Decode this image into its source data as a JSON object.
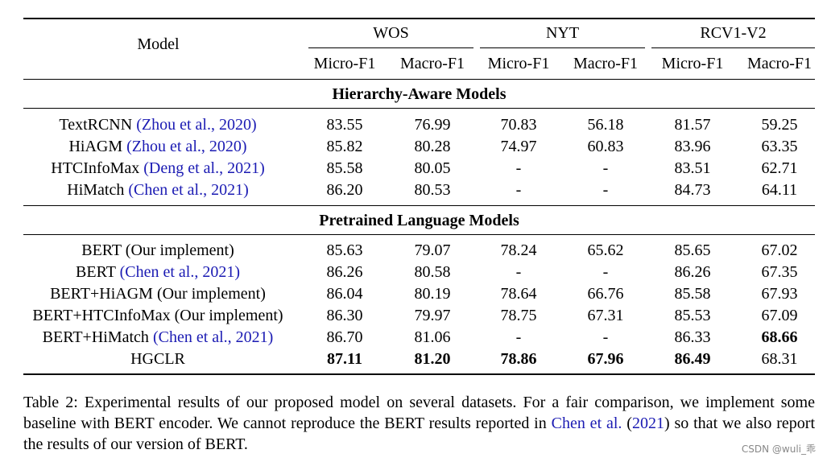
{
  "table": {
    "model_header": "Model",
    "datasets": [
      "WOS",
      "NYT",
      "RCV1-V2"
    ],
    "metrics": [
      "Micro-F1",
      "Macro-F1",
      "Micro-F1",
      "Macro-F1",
      "Micro-F1",
      "Macro-F1"
    ],
    "sections": [
      {
        "title": "Hierarchy-Aware Models",
        "rows": [
          {
            "model": "TextRCNN",
            "cite": "(Zhou et al., 2020)",
            "values": [
              "83.55",
              "76.99",
              "70.83",
              "56.18",
              "81.57",
              "59.25"
            ],
            "bold": []
          },
          {
            "model": "HiAGM",
            "cite": "(Zhou et al., 2020)",
            "values": [
              "85.82",
              "80.28",
              "74.97",
              "60.83",
              "83.96",
              "63.35"
            ],
            "bold": []
          },
          {
            "model": "HTCInfoMax",
            "cite": "(Deng et al., 2021)",
            "values": [
              "85.58",
              "80.05",
              "-",
              "-",
              "83.51",
              "62.71"
            ],
            "bold": []
          },
          {
            "model": "HiMatch",
            "cite": "(Chen et al., 2021)",
            "values": [
              "86.20",
              "80.53",
              "-",
              "-",
              "84.73",
              "64.11"
            ],
            "bold": []
          }
        ]
      },
      {
        "title": "Pretrained Language Models",
        "rows": [
          {
            "model": "BERT (Our implement)",
            "cite": "",
            "values": [
              "85.63",
              "79.07",
              "78.24",
              "65.62",
              "85.65",
              "67.02"
            ],
            "bold": []
          },
          {
            "model": "BERT",
            "cite": "(Chen et al., 2021)",
            "values": [
              "86.26",
              "80.58",
              "-",
              "-",
              "86.26",
              "67.35"
            ],
            "bold": []
          },
          {
            "model": "BERT+HiAGM (Our implement)",
            "cite": "",
            "values": [
              "86.04",
              "80.19",
              "78.64",
              "66.76",
              "85.58",
              "67.93"
            ],
            "bold": []
          },
          {
            "model": "BERT+HTCInfoMax (Our implement)",
            "cite": "",
            "values": [
              "86.30",
              "79.97",
              "78.75",
              "67.31",
              "85.53",
              "67.09"
            ],
            "bold": []
          },
          {
            "model": "BERT+HiMatch",
            "cite": "(Chen et al., 2021)",
            "values": [
              "86.70",
              "81.06",
              "-",
              "-",
              "86.33",
              "68.66"
            ],
            "bold": [
              5
            ]
          },
          {
            "model": "HGCLR",
            "cite": "",
            "values": [
              "87.11",
              "81.20",
              "78.86",
              "67.96",
              "86.49",
              "68.31"
            ],
            "bold": [
              0,
              1,
              2,
              3,
              4
            ]
          }
        ]
      }
    ]
  },
  "caption": {
    "part1": "Table 2: Experimental results of our proposed model on several datasets. For a fair comparison, we implement some baseline with BERT encoder. We cannot reproduce the BERT results reported in ",
    "cite_name": "Chen et al.",
    "cite_open": " (",
    "cite_year": "2021",
    "cite_close": ")",
    "part2": " so that we also report the results of our version of BERT."
  },
  "watermark": "CSDN @wuli_乖"
}
